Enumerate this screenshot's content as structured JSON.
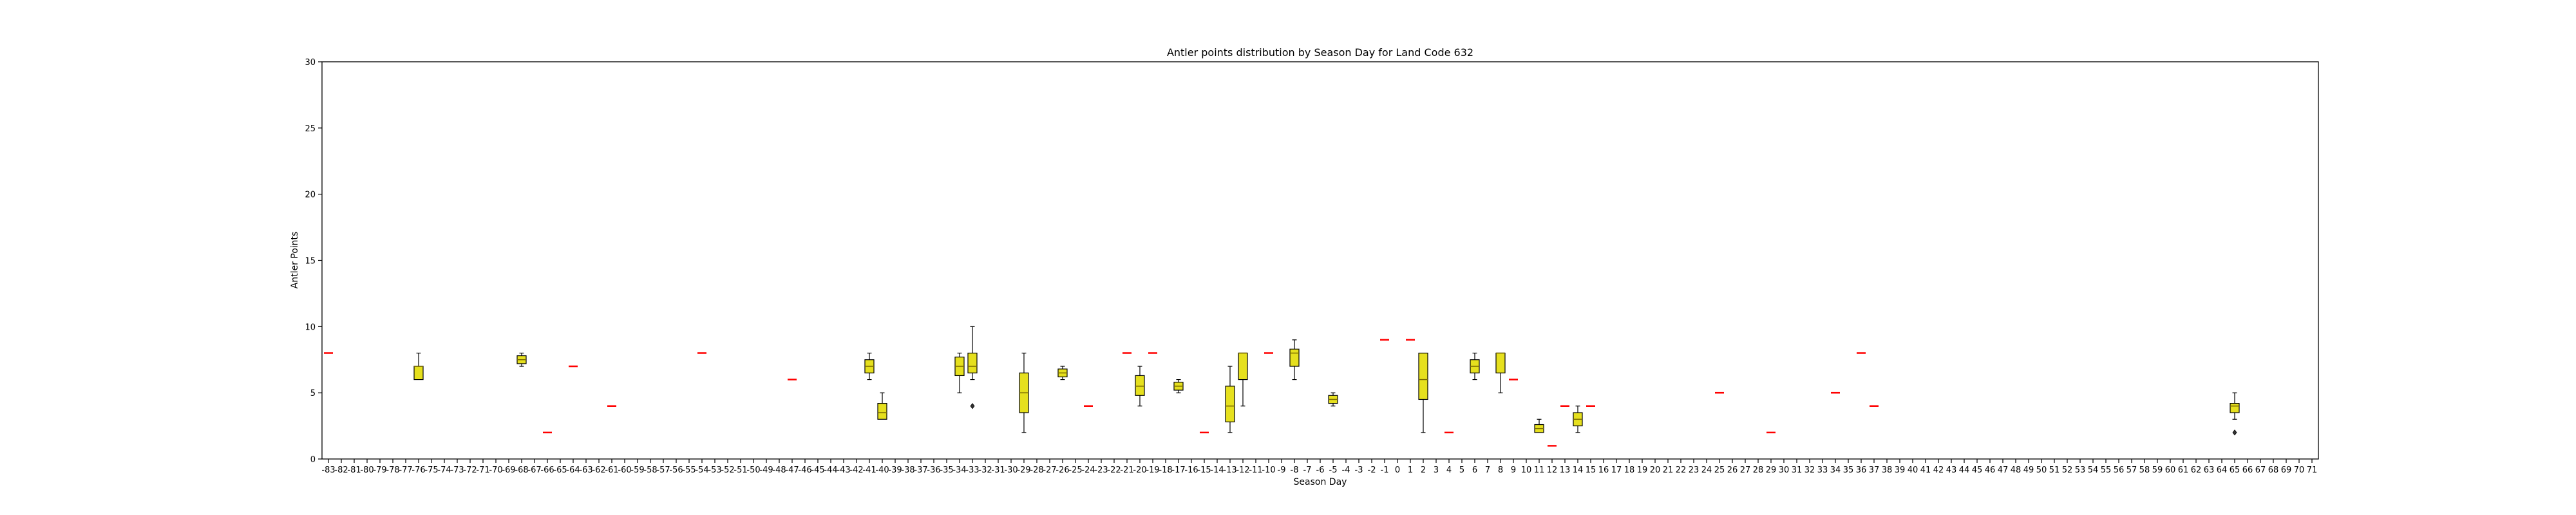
{
  "chart_data": {
    "type": "box",
    "title": "Antler points distribution by Season Day for Land Code 632",
    "xlabel": "Season Day",
    "ylabel": "Antler Points",
    "ylim": [
      0,
      30
    ],
    "yticks": [
      0,
      5,
      10,
      15,
      20,
      25,
      30
    ],
    "xcategories": [
      -83,
      -82,
      -81,
      -80,
      -79,
      -78,
      -77,
      -76,
      -75,
      -74,
      -73,
      -72,
      -71,
      -70,
      -69,
      -68,
      -67,
      -66,
      -65,
      -64,
      -63,
      -62,
      -61,
      -60,
      -59,
      -58,
      -57,
      -56,
      -55,
      -54,
      -53,
      -52,
      -51,
      -50,
      -49,
      -48,
      -47,
      -46,
      -45,
      -44,
      -43,
      -42,
      -41,
      -40,
      -39,
      -38,
      -37,
      -36,
      -35,
      -34,
      -33,
      -32,
      -31,
      -30,
      -29,
      -28,
      -27,
      -26,
      -25,
      -24,
      -23,
      -22,
      -21,
      -20,
      -19,
      -18,
      -17,
      -16,
      -15,
      -14,
      -13,
      -12,
      -11,
      -10,
      -9,
      -8,
      -7,
      -6,
      -5,
      -4,
      -3,
      -2,
      -1,
      0,
      1,
      2,
      3,
      4,
      5,
      6,
      7,
      8,
      9,
      10,
      11,
      12,
      13,
      14,
      15,
      16,
      17,
      18,
      19,
      20,
      21,
      22,
      23,
      24,
      25,
      26,
      27,
      28,
      29,
      30,
      31,
      32,
      33,
      34,
      35,
      36,
      37,
      38,
      39,
      40,
      41,
      42,
      43,
      44,
      45,
      46,
      47,
      48,
      49,
      50,
      51,
      52,
      53,
      54,
      55,
      56,
      57,
      58,
      59,
      60,
      61,
      62,
      63,
      64,
      65,
      66,
      67,
      68,
      69,
      70,
      71
    ],
    "grid": false,
    "box_color": "#e6e01e",
    "median_color": "#7a6a00",
    "single_color": "#ff0000",
    "boxes": [
      {
        "day": -83,
        "min": 8,
        "q1": 8,
        "median": 8,
        "q3": 8,
        "max": 8
      },
      {
        "day": -76,
        "min": 6,
        "q1": 6,
        "median": 7,
        "q3": 7,
        "max": 8
      },
      {
        "day": -68,
        "min": 7,
        "q1": 7.2,
        "median": 7.5,
        "q3": 7.8,
        "max": 8
      },
      {
        "day": -66,
        "min": 2,
        "q1": 2,
        "median": 2,
        "q3": 2,
        "max": 2
      },
      {
        "day": -64,
        "min": 7,
        "q1": 7,
        "median": 7,
        "q3": 7,
        "max": 7
      },
      {
        "day": -61,
        "min": 4,
        "q1": 4,
        "median": 4,
        "q3": 4,
        "max": 4
      },
      {
        "day": -54,
        "min": 8,
        "q1": 8,
        "median": 8,
        "q3": 8,
        "max": 8
      },
      {
        "day": -47,
        "min": 6,
        "q1": 6,
        "median": 6,
        "q3": 6,
        "max": 6
      },
      {
        "day": -41,
        "min": 6,
        "q1": 6.5,
        "median": 7,
        "q3": 7.5,
        "max": 8
      },
      {
        "day": -40,
        "min": 3,
        "q1": 3,
        "median": 3.5,
        "q3": 4.2,
        "max": 5
      },
      {
        "day": -34,
        "min": 5,
        "q1": 6.3,
        "median": 7,
        "q3": 7.7,
        "max": 8
      },
      {
        "day": -33,
        "min": 6,
        "q1": 6.5,
        "median": 7,
        "q3": 8,
        "max": 10,
        "outliers": [
          4
        ]
      },
      {
        "day": -29,
        "min": 2,
        "q1": 3.5,
        "median": 5,
        "q3": 6.5,
        "max": 8
      },
      {
        "day": -26,
        "min": 6,
        "q1": 6.2,
        "median": 6.5,
        "q3": 6.8,
        "max": 7
      },
      {
        "day": -24,
        "min": 4,
        "q1": 4,
        "median": 4,
        "q3": 4,
        "max": 4
      },
      {
        "day": -21,
        "min": 8,
        "q1": 8,
        "median": 8,
        "q3": 8,
        "max": 8
      },
      {
        "day": -20,
        "min": 4,
        "q1": 4.8,
        "median": 5.5,
        "q3": 6.3,
        "max": 7
      },
      {
        "day": -19,
        "min": 8,
        "q1": 8,
        "median": 8,
        "q3": 8,
        "max": 8
      },
      {
        "day": -17,
        "min": 5,
        "q1": 5.2,
        "median": 5.5,
        "q3": 5.8,
        "max": 6
      },
      {
        "day": -15,
        "min": 2,
        "q1": 2,
        "median": 2,
        "q3": 2,
        "max": 2
      },
      {
        "day": -13,
        "min": 2,
        "q1": 2.8,
        "median": 4,
        "q3": 5.5,
        "max": 7
      },
      {
        "day": -12,
        "min": 4,
        "q1": 6,
        "median": 8,
        "q3": 8,
        "max": 8
      },
      {
        "day": -10,
        "min": 8,
        "q1": 8,
        "median": 8,
        "q3": 8,
        "max": 8
      },
      {
        "day": -8,
        "min": 6,
        "q1": 7,
        "median": 8,
        "q3": 8.3,
        "max": 9
      },
      {
        "day": -5,
        "min": 4,
        "q1": 4.2,
        "median": 4.5,
        "q3": 4.8,
        "max": 5
      },
      {
        "day": -1,
        "min": 9,
        "q1": 9,
        "median": 9,
        "q3": 9,
        "max": 9
      },
      {
        "day": 1,
        "min": 9,
        "q1": 9,
        "median": 9,
        "q3": 9,
        "max": 9
      },
      {
        "day": 2,
        "min": 2,
        "q1": 4.5,
        "median": 6,
        "q3": 8,
        "max": 8
      },
      {
        "day": 4,
        "min": 2,
        "q1": 2,
        "median": 2,
        "q3": 2,
        "max": 2
      },
      {
        "day": 6,
        "min": 6,
        "q1": 6.5,
        "median": 7,
        "q3": 7.5,
        "max": 8
      },
      {
        "day": 8,
        "min": 5,
        "q1": 6.5,
        "median": 8,
        "q3": 8,
        "max": 8
      },
      {
        "day": 9,
        "min": 6,
        "q1": 6,
        "median": 6,
        "q3": 6,
        "max": 6
      },
      {
        "day": 11,
        "min": 2,
        "q1": 2,
        "median": 2.3,
        "q3": 2.6,
        "max": 3
      },
      {
        "day": 12,
        "min": 1,
        "q1": 1,
        "median": 1,
        "q3": 1,
        "max": 1
      },
      {
        "day": 13,
        "min": 4,
        "q1": 4,
        "median": 4,
        "q3": 4,
        "max": 4
      },
      {
        "day": 14,
        "min": 2,
        "q1": 2.5,
        "median": 3,
        "q3": 3.5,
        "max": 4
      },
      {
        "day": 15,
        "min": 4,
        "q1": 4,
        "median": 4,
        "q3": 4,
        "max": 4
      },
      {
        "day": 25,
        "min": 5,
        "q1": 5,
        "median": 5,
        "q3": 5,
        "max": 5
      },
      {
        "day": 29,
        "min": 2,
        "q1": 2,
        "median": 2,
        "q3": 2,
        "max": 2
      },
      {
        "day": 34,
        "min": 5,
        "q1": 5,
        "median": 5,
        "q3": 5,
        "max": 5
      },
      {
        "day": 36,
        "min": 8,
        "q1": 8,
        "median": 8,
        "q3": 8,
        "max": 8
      },
      {
        "day": 37,
        "min": 4,
        "q1": 4,
        "median": 4,
        "q3": 4,
        "max": 4
      },
      {
        "day": 65,
        "min": 3,
        "q1": 3.5,
        "median": 4,
        "q3": 4.2,
        "max": 5,
        "outliers": [
          2
        ]
      }
    ]
  }
}
